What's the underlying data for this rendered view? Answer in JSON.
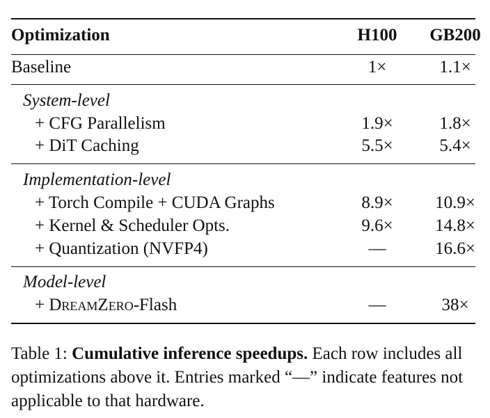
{
  "table": {
    "header": {
      "col_optimization": "Optimization",
      "col_h100": "H100",
      "col_gb200": "GB200"
    },
    "baseline": {
      "label": "Baseline",
      "h100": "1×",
      "gb200": "1.1×"
    },
    "system_level": {
      "title": "System-level",
      "rows": [
        {
          "label": "+ CFG Parallelism",
          "h100": "1.9×",
          "gb200": "1.8×"
        },
        {
          "label": "+ DiT Caching",
          "h100": "5.5×",
          "gb200": "5.4×"
        }
      ]
    },
    "implementation_level": {
      "title": "Implementation-level",
      "rows": [
        {
          "label": "+ Torch Compile + CUDA Graphs",
          "h100": "8.9×",
          "gb200": "10.9×"
        },
        {
          "label": "+ Kernel & Scheduler Opts.",
          "h100": "9.6×",
          "gb200": "14.8×"
        },
        {
          "label": "+ Quantization (NVFP4)",
          "h100": "—",
          "gb200": "16.6×"
        }
      ]
    },
    "model_level": {
      "title": "Model-level",
      "row": {
        "label_prefix": "+ ",
        "label_name": "DreamZero",
        "label_suffix": "-Flash",
        "h100": "—",
        "gb200": "38×"
      }
    }
  },
  "caption": {
    "prefix": "Table 1: ",
    "bold": "Cumulative inference speedups.",
    "rest": " Each row includes all optimizations above it. Entries marked “—” indicate features not applicable to that hardware."
  }
}
